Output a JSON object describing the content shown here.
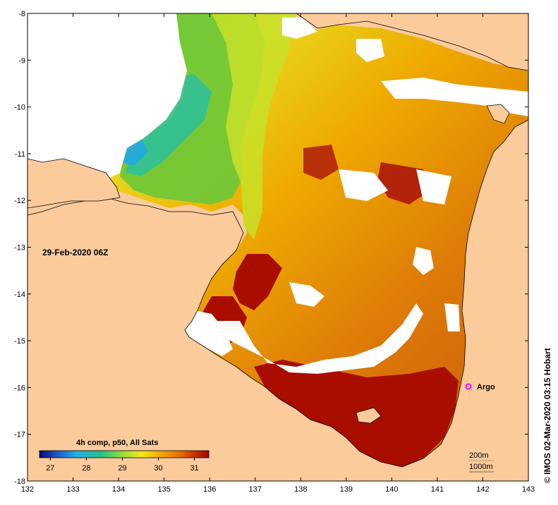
{
  "map": {
    "date_label": "29-Feb-2020 06Z",
    "credit": "© IMOS 02-Mar-2020 03:15 Hobart",
    "lon_ticks": [
      "132",
      "133",
      "134",
      "135",
      "136",
      "137",
      "138",
      "139",
      "140",
      "141",
      "142",
      "143"
    ],
    "lat_ticks": [
      "-8",
      "-9",
      "-10",
      "-11",
      "-12",
      "-13",
      "-14",
      "-15",
      "-16",
      "-17",
      "-18"
    ],
    "legend": {
      "title": "4h comp, p50, All Sats",
      "ticks": [
        "27",
        "28",
        "29",
        "30",
        "31"
      ],
      "range": [
        26.7,
        31.4
      ],
      "colors": [
        "#0a0a6e",
        "#1d56c8",
        "#22b2e8",
        "#22c08a",
        "#9ee03c",
        "#f2e81a",
        "#f0a800",
        "#e06a00",
        "#c02a00",
        "#a00c00"
      ]
    },
    "contours": {
      "shallow": "200m",
      "deep": "1000m"
    },
    "argo": {
      "label": "Argo",
      "lon": 141.7,
      "lat": -16.0,
      "color": "#ff00ff"
    },
    "colors": {
      "land": "#fbcb9c",
      "cloud": "#ffffff",
      "hot": "#a80d00"
    }
  }
}
